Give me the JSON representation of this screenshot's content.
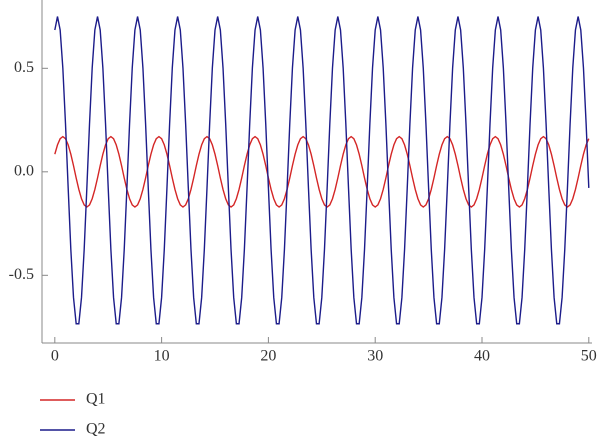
{
  "chart_data": {
    "type": "line",
    "x": [
      0,
      0.25,
      0.5,
      0.75,
      1,
      1.25,
      1.5,
      1.75,
      2,
      2.25,
      2.5,
      2.75,
      3,
      3.25,
      3.5,
      3.75,
      4,
      4.25,
      4.5,
      4.75,
      5,
      5.25,
      5.5,
      5.75,
      6,
      6.25,
      6.5,
      6.75,
      7,
      7.25,
      7.5,
      7.75,
      8,
      8.25,
      8.5,
      8.75,
      9,
      9.25,
      9.5,
      9.75,
      10,
      10.25,
      10.5,
      10.75,
      11,
      11.25,
      11.5,
      11.75,
      12,
      12.25,
      12.5,
      12.75,
      13,
      13.25,
      13.5,
      13.75,
      14,
      14.25,
      14.5,
      14.75,
      15,
      15.25,
      15.5,
      15.75,
      16,
      16.25,
      16.5,
      16.75,
      17,
      17.25,
      17.5,
      17.75,
      18,
      18.25,
      18.5,
      18.75,
      19,
      19.25,
      19.5,
      19.75,
      20,
      20.25,
      20.5,
      20.75,
      21,
      21.25,
      21.5,
      21.75,
      22,
      22.25,
      22.5,
      22.75,
      23,
      23.25,
      23.5,
      23.75,
      24,
      24.25,
      24.5,
      24.75,
      25,
      25.25,
      25.5,
      25.75,
      26,
      26.25,
      26.5,
      26.75,
      27,
      27.25,
      27.5,
      27.75,
      28,
      28.25,
      28.5,
      28.75,
      29,
      29.25,
      29.5,
      29.75,
      30,
      30.25,
      30.5,
      30.75,
      31,
      31.25,
      31.5,
      31.75,
      32,
      32.25,
      32.5,
      32.75,
      33,
      33.25,
      33.5,
      33.75,
      34,
      34.25,
      34.5,
      34.75,
      35,
      35.25,
      35.5,
      35.75,
      36,
      36.25,
      36.5,
      36.75,
      37,
      37.25,
      37.5,
      37.75,
      38,
      38.25,
      38.5,
      38.75,
      39,
      39.25,
      39.5,
      39.75,
      40,
      40.25,
      40.5,
      40.75,
      41,
      41.25,
      41.5,
      41.75,
      42,
      42.25,
      42.5,
      42.75,
      43,
      43.25,
      43.5,
      43.75,
      44,
      44.25,
      44.5,
      44.75,
      45,
      45.25,
      45.5,
      45.75,
      46,
      46.25,
      46.5,
      46.75,
      47,
      47.25,
      47.5,
      47.75,
      48,
      48.25,
      48.5,
      48.75,
      49,
      49.25,
      49.5,
      49.75,
      50
    ],
    "series": [
      {
        "name": "Q1",
        "color": "#d42626",
        "values": [
          0.085,
          0.13,
          0.16,
          0.17,
          0.16,
          0.13,
          0.085,
          0.03,
          -0.03,
          -0.085,
          -0.13,
          -0.16,
          -0.17,
          -0.16,
          -0.13,
          -0.085,
          -0.03,
          0.03,
          0.085,
          0.13,
          0.16,
          0.17,
          0.16,
          0.13,
          0.085,
          0.03,
          -0.03,
          -0.085,
          -0.13,
          -0.16,
          -0.17,
          -0.16,
          -0.13,
          -0.085,
          -0.03,
          0.03,
          0.085,
          0.13,
          0.16,
          0.17,
          0.16,
          0.13,
          0.085,
          0.03,
          -0.03,
          -0.085,
          -0.13,
          -0.16,
          -0.17,
          -0.16,
          -0.13,
          -0.085,
          -0.03,
          0.03,
          0.085,
          0.13,
          0.16,
          0.17,
          0.16,
          0.13,
          0.085,
          0.03,
          -0.03,
          -0.085,
          -0.13,
          -0.16,
          -0.17,
          -0.16,
          -0.13,
          -0.085,
          -0.03,
          0.03,
          0.085,
          0.13,
          0.16,
          0.17,
          0.16,
          0.13,
          0.085,
          0.03,
          -0.03,
          -0.085,
          -0.13,
          -0.16,
          -0.17,
          -0.16,
          -0.13,
          -0.085,
          -0.03,
          0.03,
          0.085,
          0.13,
          0.16,
          0.17,
          0.16,
          0.13,
          0.085,
          0.03,
          -0.03,
          -0.085,
          -0.13,
          -0.16,
          -0.17,
          -0.16,
          -0.13,
          -0.085,
          -0.03,
          0.03,
          0.085,
          0.13,
          0.16,
          0.17,
          0.16,
          0.13,
          0.085,
          0.03,
          -0.03,
          -0.085,
          -0.13,
          -0.16,
          -0.17,
          -0.16,
          -0.13,
          -0.085,
          -0.03,
          0.03,
          0.085,
          0.13,
          0.16,
          0.17,
          0.16,
          0.13,
          0.085,
          0.03,
          -0.03,
          -0.085,
          -0.13,
          -0.16,
          -0.17,
          -0.16,
          -0.13,
          -0.085,
          -0.03,
          0.03,
          0.085,
          0.13,
          0.16,
          0.17,
          0.16,
          0.13,
          0.085,
          0.03,
          -0.03,
          -0.085,
          -0.13,
          -0.16,
          -0.17,
          -0.16,
          -0.13,
          -0.085,
          -0.03,
          0.03,
          0.085,
          0.13,
          0.16,
          0.17,
          0.16,
          0.13,
          0.085,
          0.03,
          -0.03,
          -0.085,
          -0.13,
          -0.16,
          -0.17,
          -0.16,
          -0.13,
          -0.085,
          -0.03,
          0.03,
          0.085,
          0.13,
          0.16,
          0.17,
          0.16,
          0.13,
          0.085,
          0.03,
          -0.03,
          -0.085,
          -0.13,
          -0.16,
          -0.17,
          -0.16,
          -0.13,
          -0.085,
          -0.03,
          0.03,
          0.085,
          0.13,
          0.16
        ]
      },
      {
        "name": "Q2",
        "color": "#1c1c8a",
        "values": [
          0.685,
          0.75,
          0.685,
          0.502,
          0.232,
          -0.078,
          -0.375,
          -0.607,
          -0.734,
          -0.734,
          -0.607,
          -0.375,
          -0.078,
          0.232,
          0.502,
          0.685,
          0.75,
          0.685,
          0.502,
          0.232,
          -0.078,
          -0.375,
          -0.607,
          -0.734,
          -0.734,
          -0.607,
          -0.375,
          -0.078,
          0.232,
          0.502,
          0.685,
          0.75,
          0.685,
          0.502,
          0.232,
          -0.078,
          -0.375,
          -0.607,
          -0.734,
          -0.734,
          -0.607,
          -0.375,
          -0.078,
          0.232,
          0.502,
          0.685,
          0.75,
          0.685,
          0.502,
          0.232,
          -0.078,
          -0.375,
          -0.607,
          -0.734,
          -0.734,
          -0.607,
          -0.375,
          -0.078,
          0.232,
          0.502,
          0.685,
          0.75,
          0.685,
          0.502,
          0.232,
          -0.078,
          -0.375,
          -0.607,
          -0.734,
          -0.734,
          -0.607,
          -0.375,
          -0.078,
          0.232,
          0.502,
          0.685,
          0.75,
          0.685,
          0.502,
          0.232,
          -0.078,
          -0.375,
          -0.607,
          -0.734,
          -0.734,
          -0.607,
          -0.375,
          -0.078,
          0.232,
          0.502,
          0.685,
          0.75,
          0.685,
          0.502,
          0.232,
          -0.078,
          -0.375,
          -0.607,
          -0.734,
          -0.734,
          -0.607,
          -0.375,
          -0.078,
          0.232,
          0.502,
          0.685,
          0.75,
          0.685,
          0.502,
          0.232,
          -0.078,
          -0.375,
          -0.607,
          -0.734,
          -0.734,
          -0.607,
          -0.375,
          -0.078,
          0.232,
          0.502,
          0.685,
          0.75,
          0.685,
          0.502,
          0.232,
          -0.078,
          -0.375,
          -0.607,
          -0.734,
          -0.734,
          -0.607,
          -0.375,
          -0.078,
          0.232,
          0.502,
          0.685,
          0.75,
          0.685,
          0.502,
          0.232,
          -0.078,
          -0.375,
          -0.607,
          -0.734,
          -0.734,
          -0.607,
          -0.375,
          -0.078,
          0.232,
          0.502,
          0.685,
          0.75,
          0.685,
          0.502,
          0.232,
          -0.078,
          -0.375,
          -0.607,
          -0.734,
          -0.734,
          -0.607,
          -0.375,
          -0.078,
          0.232,
          0.502,
          0.685,
          0.75,
          0.685,
          0.502,
          0.232,
          -0.078,
          -0.375,
          -0.607,
          -0.734,
          -0.734,
          -0.607,
          -0.375,
          -0.078,
          0.232,
          0.502,
          0.685,
          0.75,
          0.685,
          0.502,
          0.232,
          -0.078,
          -0.375,
          -0.607,
          -0.734,
          -0.734,
          -0.607,
          -0.375,
          -0.078,
          0.232,
          0.502,
          0.685,
          0.75,
          0.685,
          0.502,
          0.232,
          -0.078
        ]
      }
    ],
    "xlim": [
      -1.2,
      50.3
    ],
    "ylim": [
      -0.827,
      0.83
    ],
    "xticks": [
      0,
      10,
      20,
      30,
      40,
      50
    ],
    "yticks": [
      -0.5,
      {
        "value": 0,
        "label": "0.0"
      },
      0.5
    ],
    "legend": "bottom-left"
  }
}
